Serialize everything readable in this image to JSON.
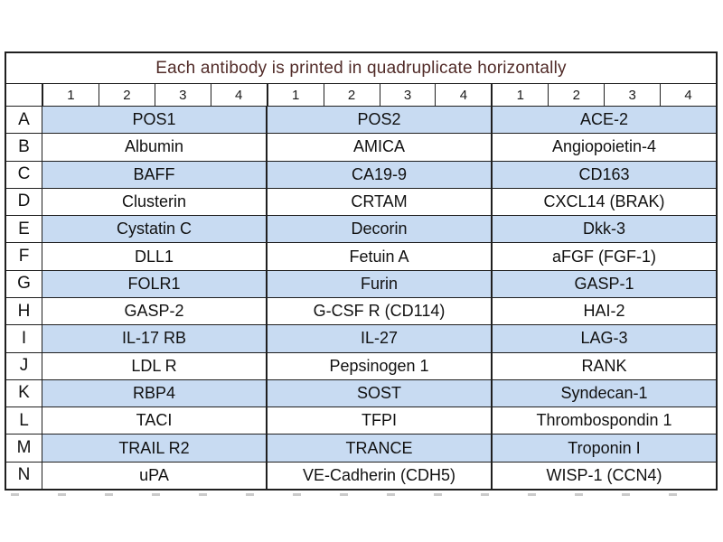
{
  "table": {
    "title": "Each antibody is printed in quadruplicate horizontally",
    "column_numbers": [
      "1",
      "2",
      "3",
      "4",
      "1",
      "2",
      "3",
      "4",
      "1",
      "2",
      "3",
      "4"
    ],
    "rows": [
      {
        "label": "A",
        "cells": [
          "POS1",
          "POS2",
          "ACE-2"
        ]
      },
      {
        "label": "B",
        "cells": [
          "Albumin",
          "AMICA",
          "Angiopoietin-4"
        ]
      },
      {
        "label": "C",
        "cells": [
          "BAFF",
          "CA19-9",
          "CD163"
        ]
      },
      {
        "label": "D",
        "cells": [
          "Clusterin",
          "CRTAM",
          "CXCL14 (BRAK)"
        ]
      },
      {
        "label": "E",
        "cells": [
          "Cystatin C",
          "Decorin",
          "Dkk-3"
        ]
      },
      {
        "label": "F",
        "cells": [
          "DLL1",
          "Fetuin A",
          "aFGF (FGF-1)"
        ]
      },
      {
        "label": "G",
        "cells": [
          "FOLR1",
          "Furin",
          "GASP-1"
        ]
      },
      {
        "label": "H",
        "cells": [
          "GASP-2",
          "G-CSF R (CD114)",
          "HAI-2"
        ]
      },
      {
        "label": "I",
        "cells": [
          "IL-17 RB",
          "IL-27",
          "LAG-3"
        ]
      },
      {
        "label": "J",
        "cells": [
          "LDL R",
          "Pepsinogen 1",
          "RANK"
        ]
      },
      {
        "label": "K",
        "cells": [
          "RBP4",
          "SOST",
          "Syndecan-1"
        ]
      },
      {
        "label": "L",
        "cells": [
          "TACI",
          "TFPI",
          "Thrombospondin 1"
        ]
      },
      {
        "label": "M",
        "cells": [
          "TRAIL R2",
          "TRANCE",
          "Troponin I"
        ]
      },
      {
        "label": "N",
        "cells": [
          "uPA",
          "VE-Cadherin (CDH5)",
          "WISP-1 (CCN4)"
        ]
      }
    ],
    "colors": {
      "shaded_row": "#c8dbf2",
      "title_text": "#512b28",
      "border": "#1f1f1f"
    }
  }
}
